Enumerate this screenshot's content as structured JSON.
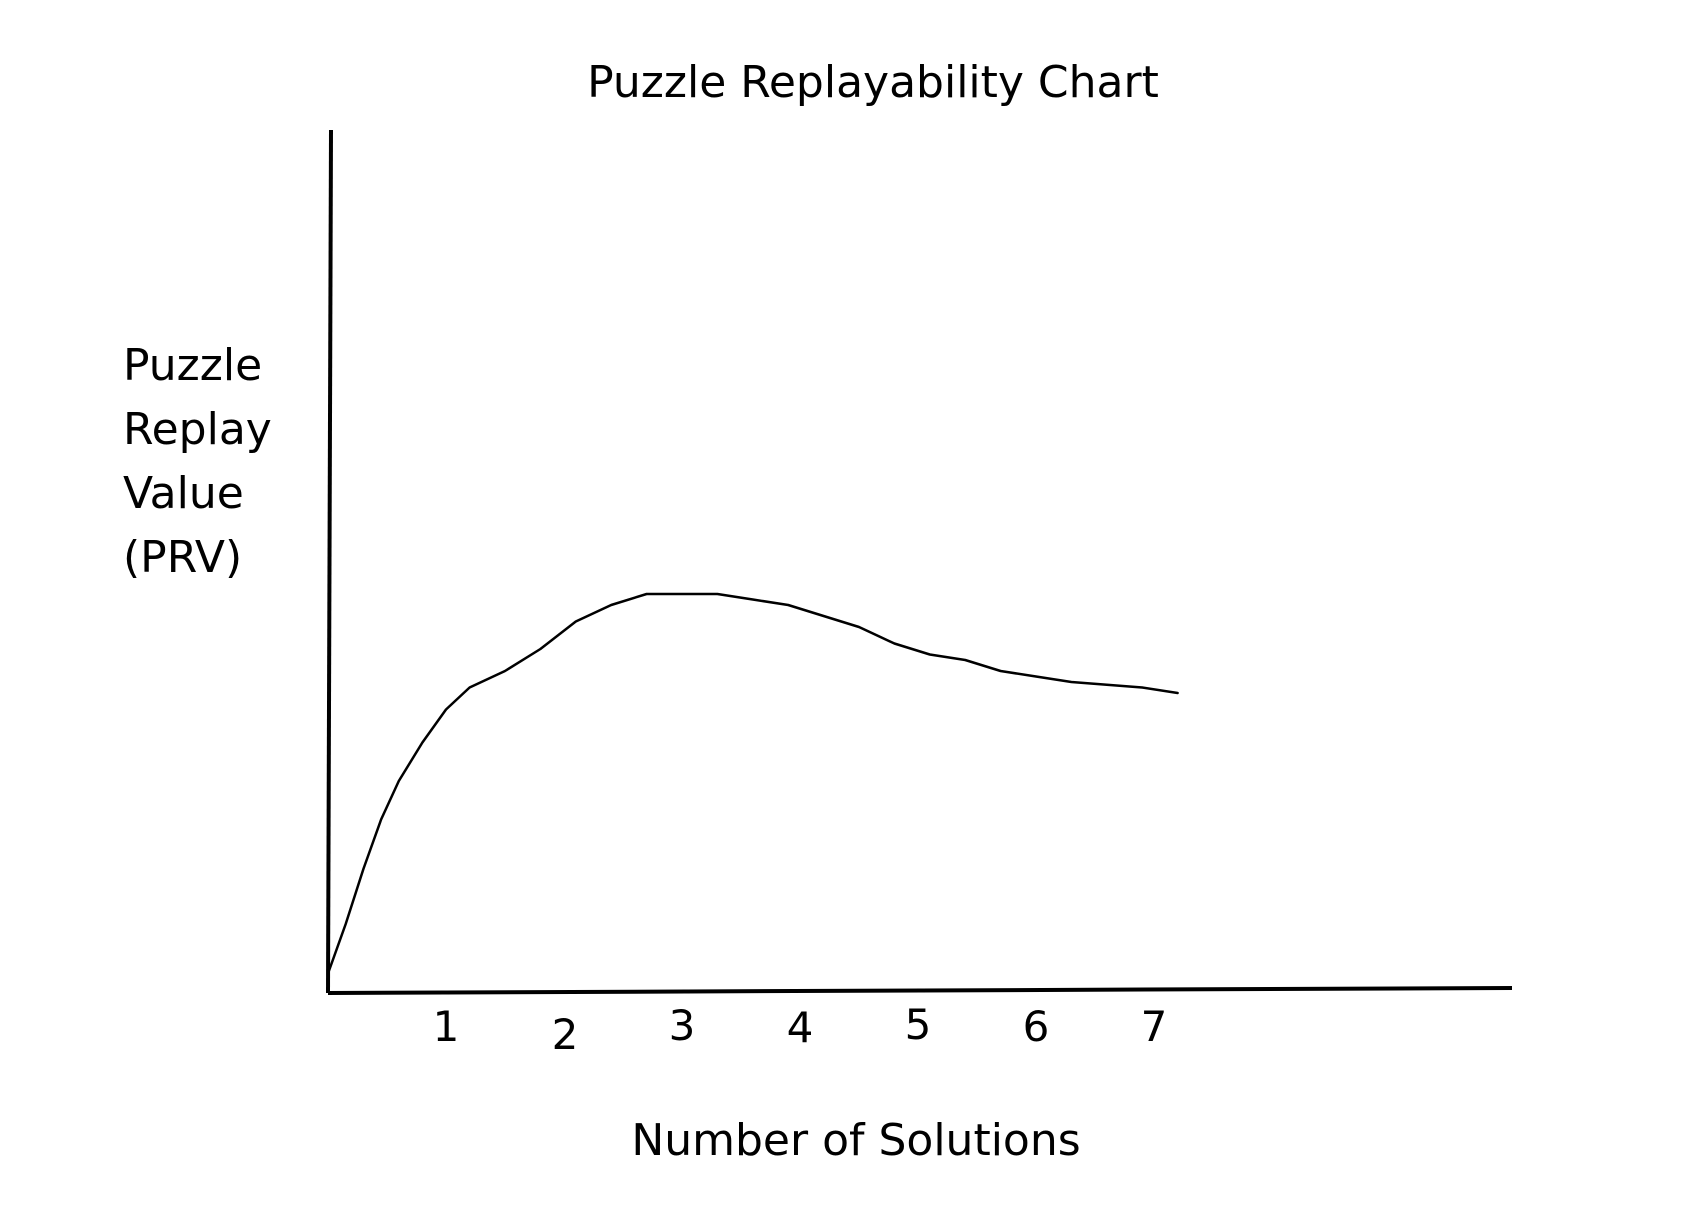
{
  "chart_data": {
    "type": "line",
    "title": "Puzzle Replayability Chart",
    "xlabel": "Number of Solutions",
    "ylabel_lines": [
      "Puzzle",
      "Replay",
      "Value",
      "(PRV)"
    ],
    "x_ticks": [
      "1",
      "2",
      "3",
      "4",
      "5",
      "6",
      "7"
    ],
    "xlim": [
      0,
      11
    ],
    "ylim": [
      0,
      10
    ],
    "grid": false,
    "series": [
      {
        "color": "#000000",
        "x": [
          0,
          0.15,
          0.3,
          0.45,
          0.6,
          0.8,
          1.0,
          1.2,
          1.5,
          1.8,
          2.1,
          2.4,
          2.7,
          3.0,
          3.3,
          3.6,
          3.9,
          4.2,
          4.5,
          4.8,
          5.1,
          5.4,
          5.7,
          6.0,
          6.3,
          6.6,
          6.9,
          7.2
        ],
        "y": [
          0.3,
          1.2,
          2.2,
          3.1,
          3.8,
          4.5,
          5.1,
          5.5,
          5.8,
          6.2,
          6.7,
          7.0,
          7.2,
          7.2,
          7.2,
          7.1,
          7.0,
          6.8,
          6.6,
          6.3,
          6.1,
          6.0,
          5.8,
          5.7,
          5.6,
          5.55,
          5.5,
          5.4
        ]
      }
    ]
  }
}
